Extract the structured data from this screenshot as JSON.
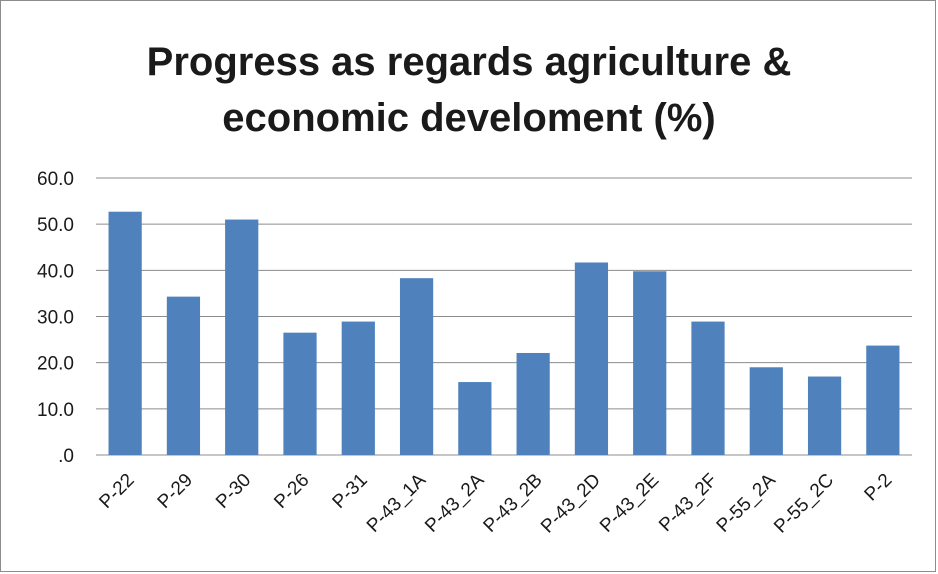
{
  "chart_data": {
    "type": "bar",
    "title_lines": [
      "Progress as regards agriculture &",
      "economic develoment (%)"
    ],
    "categories": [
      "P-22",
      "P-29",
      "P-30",
      "P-26",
      "P-31",
      "P-43_1A",
      "P-43_2A",
      "P-43_2B",
      "P-43_2D",
      "P-43_2E",
      "P-43_2F",
      "P-55_2A",
      "P-55_2C",
      "P-2"
    ],
    "values": [
      52.7,
      34.3,
      51.0,
      26.5,
      28.9,
      38.3,
      15.8,
      22.1,
      41.7,
      39.8,
      28.9,
      19.0,
      17.0,
      23.7
    ],
    "y_ticks": [
      ".0",
      "10.0",
      "20.0",
      "30.0",
      "40.0",
      "50.0",
      "60.0"
    ],
    "ylim": [
      0,
      60
    ],
    "grid": true,
    "bar_color": "#4f81bd",
    "legend": "none"
  }
}
